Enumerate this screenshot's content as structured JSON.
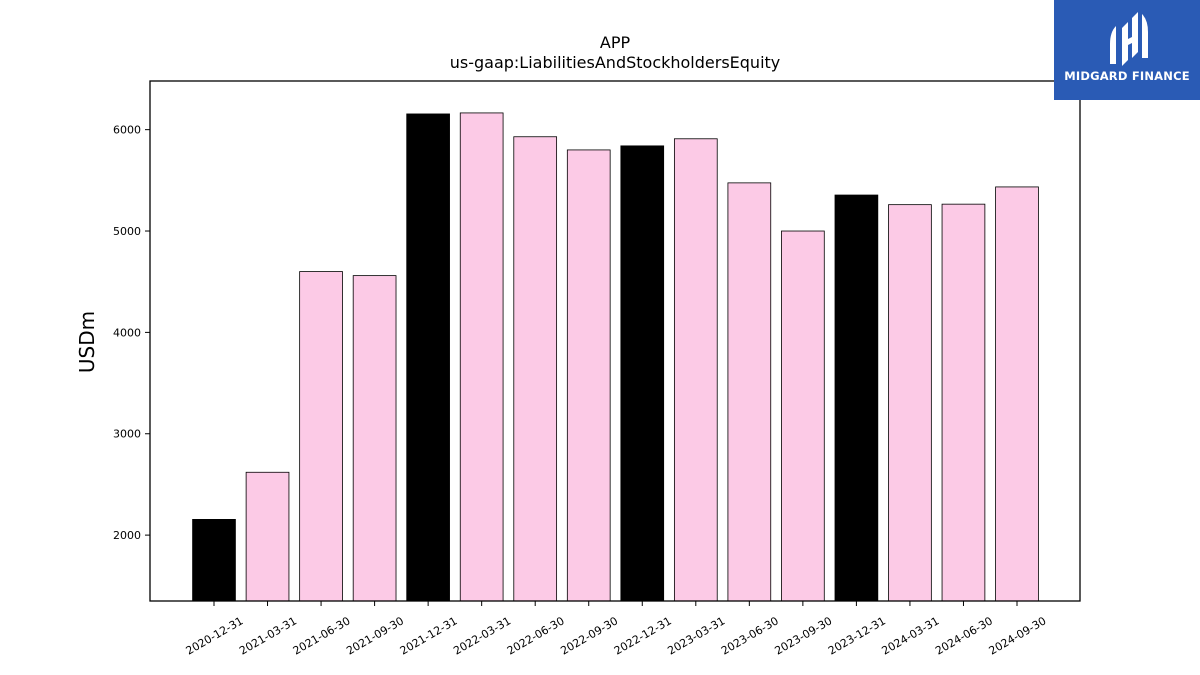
{
  "chart_data": {
    "type": "bar",
    "title": "APP",
    "subtitle": "us-gaap:LiabilitiesAndStockholdersEquity",
    "xlabel": "",
    "ylabel": "USDm",
    "ylim": [
      1350,
      6480
    ],
    "yticks": [
      2000,
      3000,
      4000,
      5000,
      6000
    ],
    "grid": false,
    "categories": [
      "2020-12-31",
      "2021-03-31",
      "2021-06-30",
      "2021-09-30",
      "2021-12-31",
      "2022-03-31",
      "2022-06-30",
      "2022-09-30",
      "2022-12-31",
      "2023-03-31",
      "2023-06-30",
      "2023-09-30",
      "2023-12-31",
      "2024-03-31",
      "2024-06-30",
      "2024-09-30"
    ],
    "values": [
      2155,
      2620,
      4600,
      4560,
      6155,
      6165,
      5930,
      5800,
      5840,
      5910,
      5475,
      5000,
      5355,
      5260,
      5265,
      5435
    ],
    "highlight": [
      true,
      false,
      false,
      false,
      true,
      false,
      false,
      false,
      true,
      false,
      false,
      false,
      true,
      false,
      false,
      false
    ],
    "colors": {
      "regular": "#fccae6",
      "highlight": "#000000",
      "edge": "#000000"
    }
  },
  "logo": {
    "text": "MIDGARD FINANCE",
    "background": "#2a5bb5"
  }
}
